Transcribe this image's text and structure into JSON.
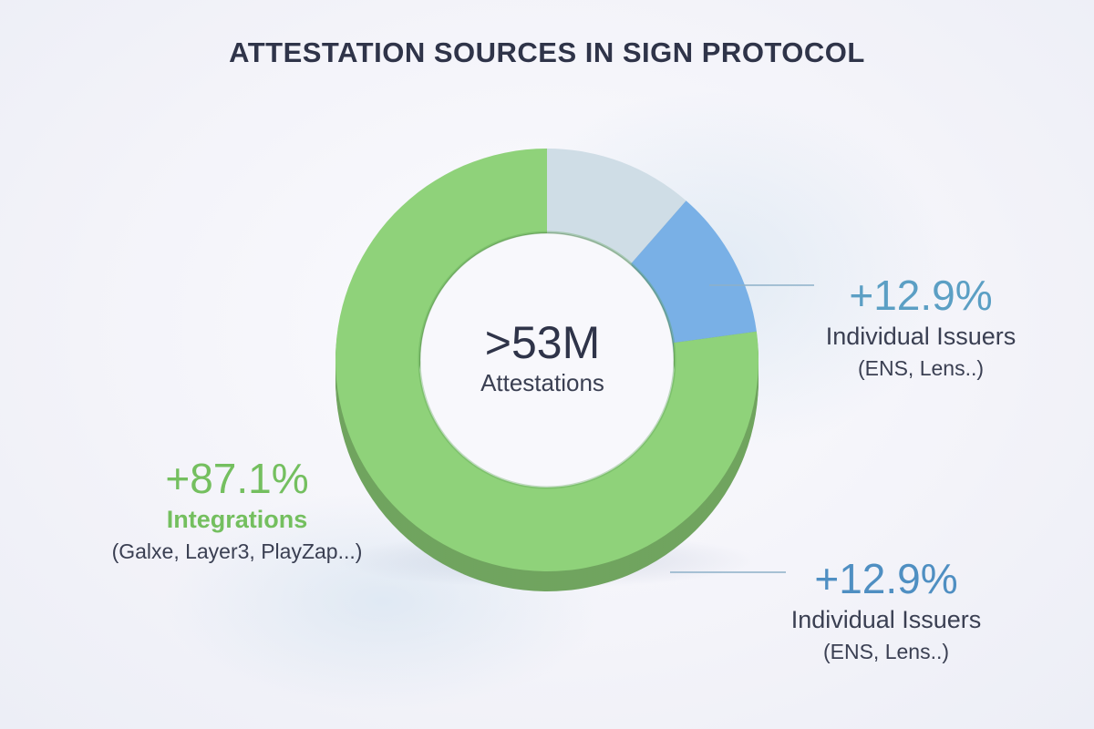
{
  "chart_data": {
    "type": "pie",
    "title": "ATTESTATION SOURCES IN SIGN PROTOCOL",
    "center": {
      "value": ">53M",
      "label": "Attestations"
    },
    "slices": [
      {
        "name": "Individual Issuers",
        "value": 12.9,
        "color": "#cfdde6"
      },
      {
        "name": "Individual Issuers",
        "value": 12.9,
        "color": "#79b0e6"
      },
      {
        "name": "Integrations",
        "value": 87.1,
        "color": "#8fd27a"
      }
    ],
    "labels": [
      {
        "pct": "+12.9%",
        "name": "Individual Issuers",
        "sub": "(ENS, Lens..)",
        "color": "#5b9fc4"
      },
      {
        "pct": "+12.9%",
        "name": "Individual Issuers",
        "sub": "(ENS, Lens..)",
        "color": "#4f8fc2"
      },
      {
        "pct": "+87.1%",
        "name": "Integrations",
        "sub": "(Galxe, Layer3, PlayZap...)",
        "color": "#74bf5f"
      }
    ]
  }
}
